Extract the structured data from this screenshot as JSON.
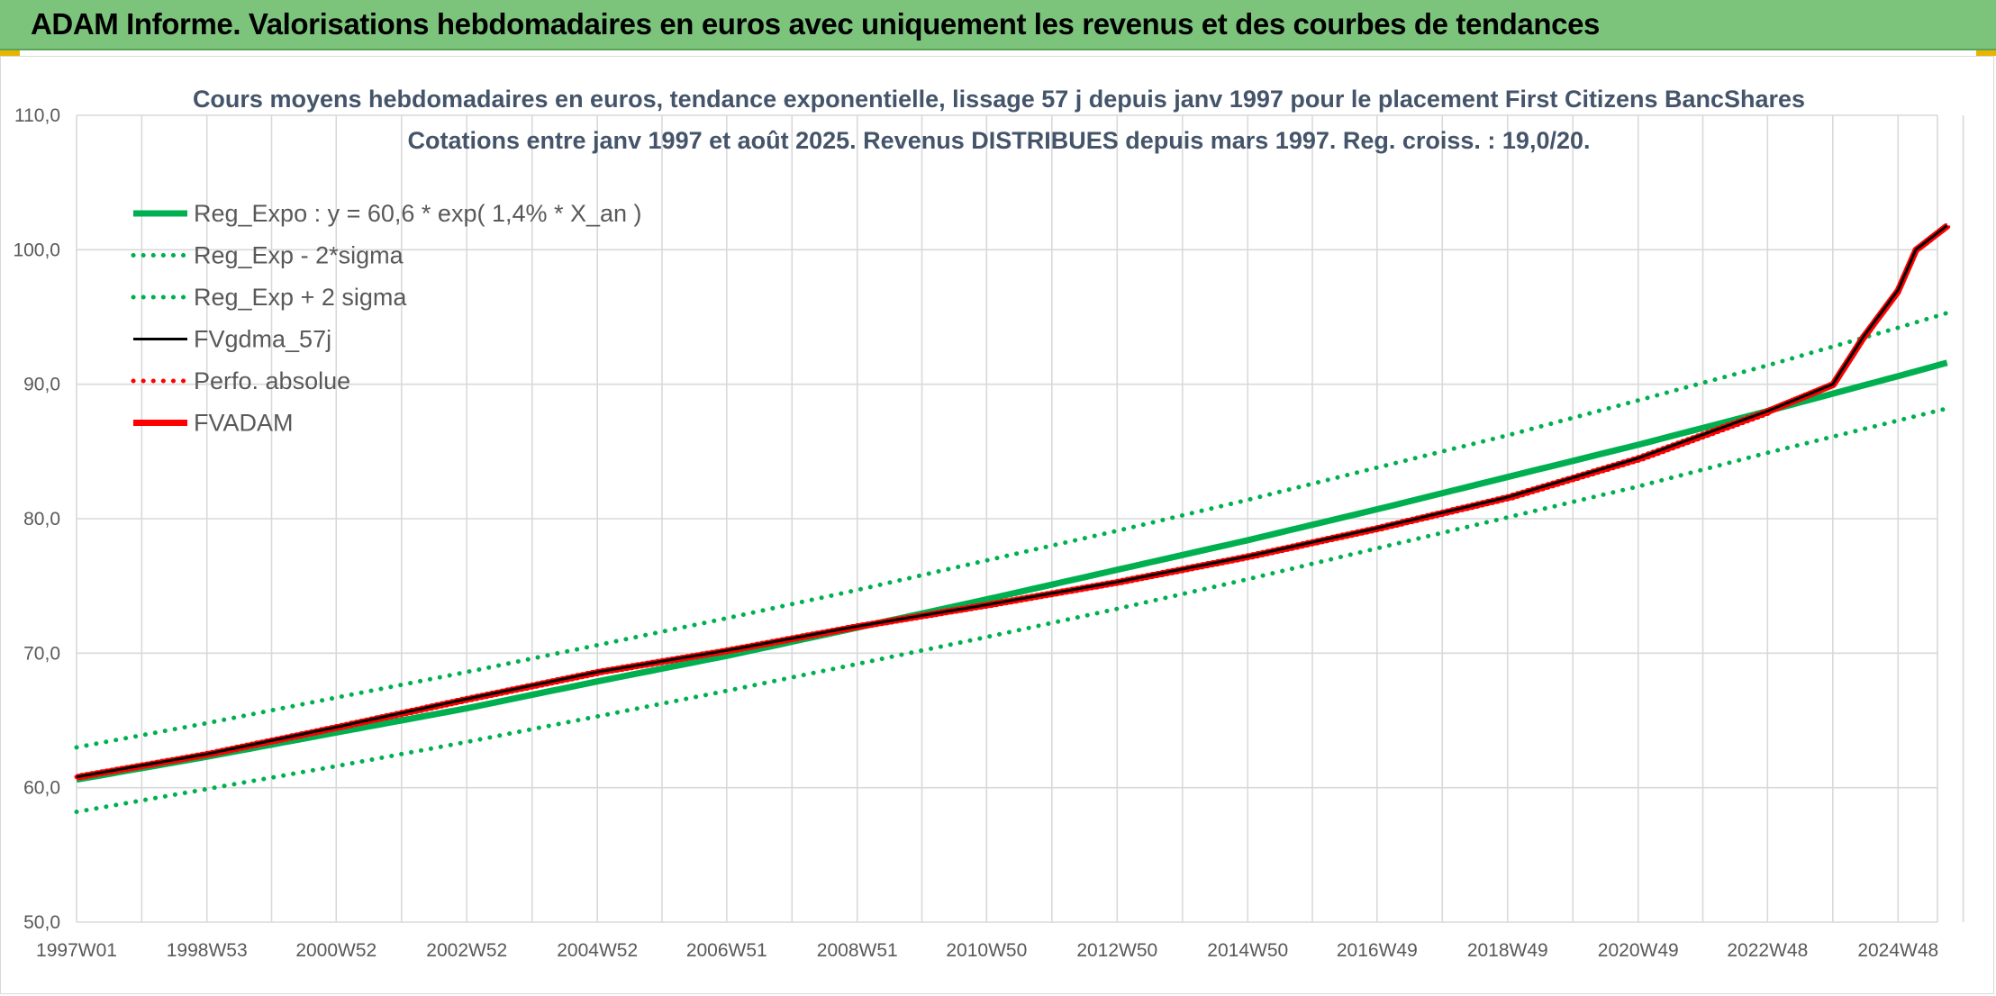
{
  "banner": {
    "title": "ADAM Informe. Valorisations hebdomadaires en euros avec uniquement les revenus et des courbes de tendances"
  },
  "colors": {
    "banner_bg": "#7cc47c",
    "reg_green": "#00b050",
    "fvadam_red": "#ff0000",
    "fvgdma_black": "#000000",
    "grid": "#d9d9d9"
  },
  "chart_data": {
    "type": "line",
    "title": "Cours moyens hebdomadaires en euros, tendance exponentielle, lissage 57 j depuis janv 1997 pour le placement First Citizens BancShares",
    "subtitle": "Cotations entre janv 1997 et août 2025. Revenus DISTRIBUES depuis mars 1997. Reg. croiss. : 19,0/20.",
    "ylim": [
      50,
      110
    ],
    "yticks": [
      "50,0",
      "60,0",
      "70,0",
      "80,0",
      "90,0",
      "100,0",
      "110,0"
    ],
    "xticks": [
      "1997W01",
      "1998W53",
      "2000W52",
      "2002W52",
      "2004W52",
      "2006W51",
      "2008W51",
      "2010W50",
      "2012W50",
      "2014W50",
      "2016W49",
      "2018W49",
      "2020W49",
      "2022W48",
      "2024W48"
    ],
    "grid": true,
    "legend_position": "top-left",
    "legend": [
      {
        "label": "Reg_Expo : y = 60,6 * exp( 1,4% *  X_an )",
        "style": "solid-thick",
        "color": "#00b050"
      },
      {
        "label": "Reg_Exp - 2*sigma",
        "style": "dotted",
        "color": "#00b050"
      },
      {
        "label": "Reg_Exp + 2 sigma",
        "style": "dotted",
        "color": "#00b050"
      },
      {
        "label": "FVgdma_57j",
        "style": "solid",
        "color": "#000000"
      },
      {
        "label": "Perfo. absolue",
        "style": "dotted",
        "color": "#ff0000"
      },
      {
        "label": "FVADAM",
        "style": "solid-thick",
        "color": "#ff0000"
      }
    ],
    "series": [
      {
        "name": "Reg_Expo : y = 60,6 * exp( 1,4% *  X_an )",
        "x": [
          "1997W01",
          "1998W53",
          "2000W52",
          "2002W52",
          "2004W52",
          "2006W51",
          "2008W51",
          "2010W50",
          "2012W50",
          "2014W50",
          "2016W49",
          "2018W49",
          "2020W49",
          "2022W48",
          "2024W48",
          "2025W35"
        ],
        "values": [
          60.6,
          62.3,
          64.1,
          65.9,
          67.9,
          69.8,
          71.9,
          74.0,
          76.2,
          78.4,
          80.7,
          83.1,
          85.5,
          88.0,
          90.6,
          91.6
        ]
      },
      {
        "name": "Reg_Exp - 2*sigma",
        "x": [
          "1997W01",
          "1998W53",
          "2000W52",
          "2002W52",
          "2004W52",
          "2006W51",
          "2008W51",
          "2010W50",
          "2012W50",
          "2014W50",
          "2016W49",
          "2018W49",
          "2020W49",
          "2022W48",
          "2024W48",
          "2025W35"
        ],
        "values": [
          58.2,
          59.9,
          61.6,
          63.4,
          65.3,
          67.2,
          69.2,
          71.2,
          73.3,
          75.5,
          77.8,
          80.1,
          82.4,
          84.9,
          87.3,
          88.2
        ]
      },
      {
        "name": "Reg_Exp + 2 sigma",
        "x": [
          "1997W01",
          "1998W53",
          "2000W52",
          "2002W52",
          "2004W52",
          "2006W51",
          "2008W51",
          "2010W50",
          "2012W50",
          "2014W50",
          "2016W49",
          "2018W49",
          "2020W49",
          "2022W48",
          "2024W48",
          "2025W35"
        ],
        "values": [
          63.0,
          64.8,
          66.7,
          68.6,
          70.6,
          72.6,
          74.7,
          76.9,
          79.1,
          81.4,
          83.8,
          86.2,
          88.8,
          91.4,
          94.2,
          95.3
        ]
      },
      {
        "name": "FVgdma_57j",
        "x": [
          "1997W01",
          "1998W53",
          "2000W52",
          "2002W52",
          "2004W52",
          "2006W51",
          "2008W51",
          "2010W50",
          "2012W50",
          "2014W50",
          "2016W49",
          "2018W49",
          "2020W49",
          "2022W48",
          "2023W48",
          "2024W20",
          "2024W48",
          "2025W10",
          "2025W35"
        ],
        "values": [
          60.8,
          62.5,
          64.5,
          66.6,
          68.6,
          70.2,
          72.0,
          73.6,
          75.3,
          77.2,
          79.3,
          81.6,
          84.5,
          88.0,
          90.0,
          93.5,
          97.0,
          100.0,
          101.8
        ]
      },
      {
        "name": "Perfo. absolue",
        "x": [
          "1997W01",
          "1998W53",
          "2000W52",
          "2002W52",
          "2004W52",
          "2006W51",
          "2008W51",
          "2010W50",
          "2012W50",
          "2014W50",
          "2016W49",
          "2018W49",
          "2020W49",
          "2022W48",
          "2023W48",
          "2024W20",
          "2024W48",
          "2025W10",
          "2025W35"
        ],
        "values": [
          60.8,
          62.5,
          64.5,
          66.6,
          68.6,
          70.2,
          72.0,
          73.6,
          75.3,
          77.2,
          79.3,
          81.6,
          84.5,
          88.0,
          90.0,
          93.5,
          97.0,
          100.0,
          101.8
        ]
      },
      {
        "name": "FVADAM",
        "x": [
          "1997W01",
          "1998W53",
          "2000W52",
          "2002W52",
          "2004W52",
          "2006W51",
          "2008W51",
          "2010W50",
          "2012W50",
          "2014W50",
          "2016W49",
          "2018W49",
          "2020W49",
          "2022W48",
          "2023W48",
          "2024W20",
          "2024W48",
          "2025W10",
          "2025W35"
        ],
        "values": [
          60.8,
          62.5,
          64.5,
          66.6,
          68.6,
          70.2,
          72.0,
          73.6,
          75.3,
          77.2,
          79.3,
          81.6,
          84.5,
          88.0,
          90.0,
          93.5,
          97.0,
          100.0,
          101.8
        ]
      }
    ]
  }
}
